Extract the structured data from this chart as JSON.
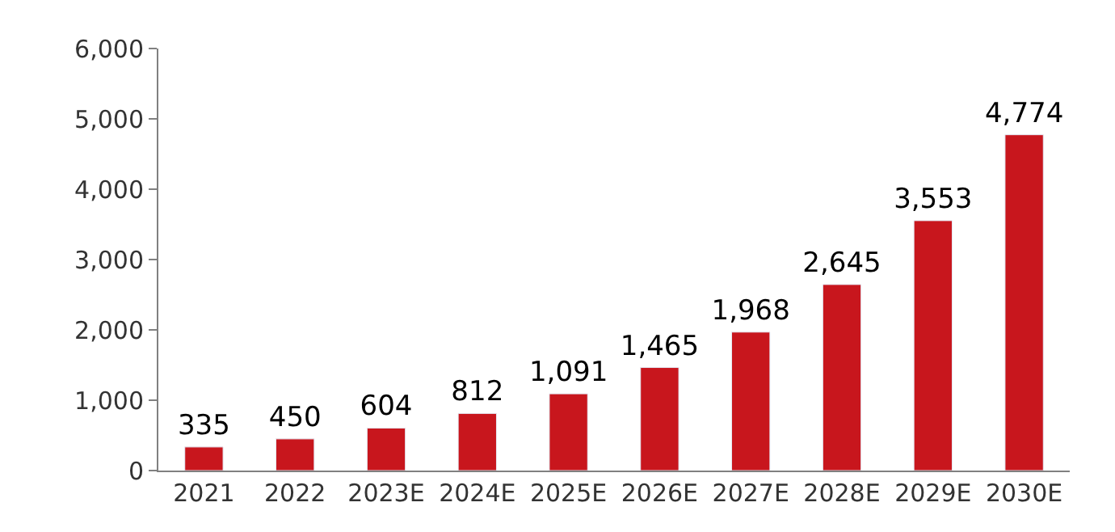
{
  "chart_data": {
    "type": "bar",
    "categories": [
      "2021",
      "2022",
      "2023E",
      "2024E",
      "2025E",
      "2026E",
      "2027E",
      "2028E",
      "2029E",
      "2030E"
    ],
    "values": [
      335,
      450,
      604,
      812,
      1091,
      1465,
      1968,
      2645,
      3553,
      4774
    ],
    "value_labels": [
      "335",
      "450",
      "604",
      "812",
      "1,091",
      "1,465",
      "1,968",
      "2,645",
      "3,553",
      "4,774"
    ],
    "color": "#c8161d",
    "ylim": [
      0,
      6000
    ],
    "yticks": [
      0,
      {
        "value": 1000,
        "label": "1,000"
      },
      {
        "value": 2000,
        "label": "2,000"
      },
      {
        "value": 3000,
        "label": "3,000"
      },
      {
        "value": 4000,
        "label": "4,000"
      },
      {
        "value": 5000,
        "label": "5,000"
      },
      {
        "value": 6000,
        "label": "6,000"
      }
    ],
    "legend": false
  }
}
